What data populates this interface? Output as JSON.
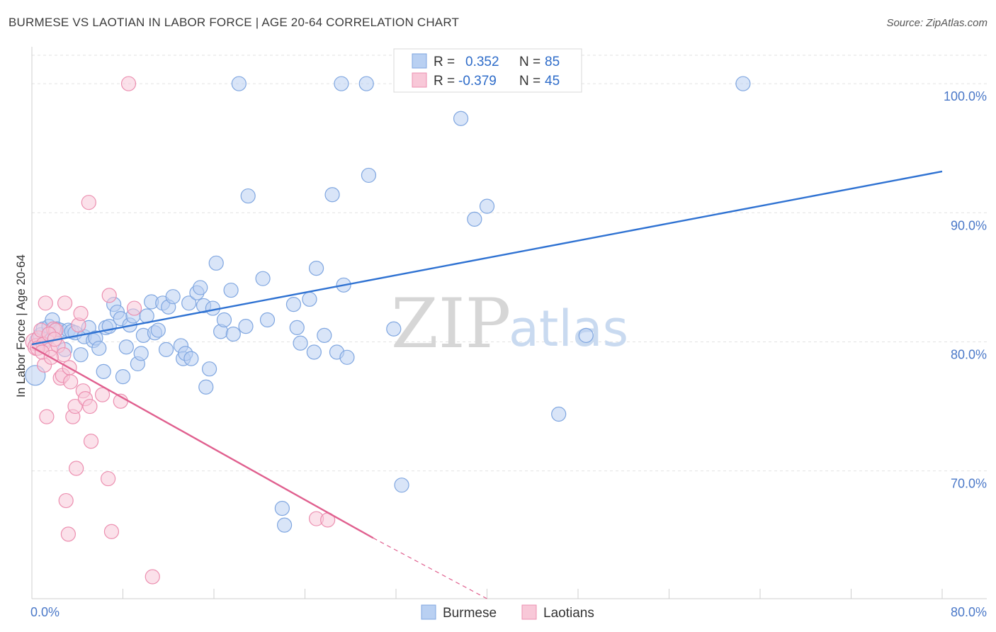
{
  "title": "BURMESE VS LAOTIAN IN LABOR FORCE | AGE 20-64 CORRELATION CHART",
  "source": "Source: ZipAtlas.com",
  "watermark": {
    "part1": "ZIP",
    "part2": "atlas"
  },
  "chart_data": {
    "type": "scatter",
    "xlabel": "",
    "ylabel": "In Labor Force | Age 20-64",
    "xlim": [
      0,
      80
    ],
    "ylim": [
      60.1,
      102.2
    ],
    "x_tick_labels": [
      "0.0%",
      "80.0%"
    ],
    "y_ticks": [
      70,
      80,
      90,
      100
    ],
    "y_tick_labels": [
      "70.0%",
      "80.0%",
      "90.0%",
      "100.0%"
    ],
    "grid": true,
    "stats": [
      {
        "r_label": "R =",
        "r_value": "0.352",
        "n_label": "N =",
        "n_value": "85"
      },
      {
        "r_label": "R =",
        "r_value": "-0.379",
        "n_label": "N =",
        "n_value": "45"
      }
    ],
    "series": [
      {
        "name": "Burmese",
        "color": "#7fa6e0",
        "fill": "#b9d0f2",
        "line_color": "#2f72d2",
        "trend": {
          "x0": 0.0,
          "y0": 79.8,
          "x1": 80.0,
          "y1": 93.2
        },
        "points": [
          [
            0.3,
            77.4,
            14
          ],
          [
            0.5,
            80.1,
            11
          ],
          [
            0.8,
            80.5,
            11
          ],
          [
            1.0,
            81.0,
            10
          ],
          [
            1.3,
            80.2,
            10
          ],
          [
            1.5,
            81.2,
            10
          ],
          [
            1.8,
            81.7,
            10
          ],
          [
            2.2,
            81.0,
            10
          ],
          [
            2.5,
            80.9,
            10
          ],
          [
            2.9,
            79.4,
            10
          ],
          [
            3.2,
            80.9,
            10
          ],
          [
            3.5,
            80.8,
            10
          ],
          [
            3.8,
            80.7,
            10
          ],
          [
            4.3,
            79.0,
            10
          ],
          [
            4.6,
            80.4,
            10
          ],
          [
            5.0,
            81.1,
            10
          ],
          [
            5.4,
            80.1,
            10
          ],
          [
            5.6,
            80.3,
            10
          ],
          [
            5.9,
            79.5,
            10
          ],
          [
            6.3,
            77.7,
            10
          ],
          [
            6.5,
            81.1,
            10
          ],
          [
            6.8,
            81.2,
            10
          ],
          [
            7.2,
            82.9,
            10
          ],
          [
            7.5,
            82.3,
            10
          ],
          [
            7.8,
            81.8,
            10
          ],
          [
            8.0,
            77.3,
            10
          ],
          [
            8.3,
            79.6,
            10
          ],
          [
            8.6,
            81.3,
            10
          ],
          [
            8.9,
            82.0,
            10
          ],
          [
            9.3,
            78.3,
            10
          ],
          [
            9.6,
            79.1,
            10
          ],
          [
            9.8,
            80.5,
            10
          ],
          [
            10.1,
            82.0,
            10
          ],
          [
            10.5,
            83.1,
            10
          ],
          [
            10.8,
            80.7,
            10
          ],
          [
            11.1,
            80.9,
            10
          ],
          [
            11.5,
            83.0,
            10
          ],
          [
            11.8,
            79.4,
            10
          ],
          [
            12.0,
            82.7,
            10
          ],
          [
            12.4,
            83.5,
            10
          ],
          [
            13.1,
            79.7,
            10
          ],
          [
            13.3,
            78.7,
            10
          ],
          [
            13.5,
            79.1,
            10
          ],
          [
            13.8,
            83.0,
            10
          ],
          [
            14.0,
            78.7,
            10
          ],
          [
            14.5,
            83.8,
            10
          ],
          [
            14.8,
            84.2,
            10
          ],
          [
            15.1,
            82.8,
            10
          ],
          [
            15.3,
            76.5,
            10
          ],
          [
            15.6,
            77.9,
            10
          ],
          [
            15.9,
            82.6,
            10
          ],
          [
            16.2,
            86.1,
            10
          ],
          [
            16.6,
            80.8,
            10
          ],
          [
            16.9,
            81.7,
            10
          ],
          [
            17.5,
            84.0,
            10
          ],
          [
            17.7,
            80.6,
            10
          ],
          [
            18.2,
            100.0,
            10
          ],
          [
            18.8,
            81.2,
            10
          ],
          [
            19.0,
            91.3,
            10
          ],
          [
            20.3,
            84.9,
            10
          ],
          [
            20.7,
            81.7,
            10
          ],
          [
            22.0,
            67.1,
            10
          ],
          [
            22.2,
            65.8,
            10
          ],
          [
            23.0,
            82.9,
            10
          ],
          [
            23.3,
            81.1,
            10
          ],
          [
            23.6,
            79.9,
            10
          ],
          [
            24.4,
            83.3,
            10
          ],
          [
            24.8,
            79.2,
            10
          ],
          [
            25.0,
            85.7,
            10
          ],
          [
            25.7,
            80.5,
            10
          ],
          [
            26.4,
            91.4,
            10
          ],
          [
            26.8,
            79.2,
            10
          ],
          [
            27.2,
            100.0,
            10
          ],
          [
            27.4,
            84.4,
            10
          ],
          [
            27.7,
            78.8,
            10
          ],
          [
            29.4,
            100.0,
            10
          ],
          [
            29.6,
            92.9,
            10
          ],
          [
            31.8,
            81.0,
            10
          ],
          [
            32.5,
            68.9,
            10
          ],
          [
            37.7,
            97.3,
            10
          ],
          [
            38.9,
            89.5,
            10
          ],
          [
            40.0,
            90.5,
            10
          ],
          [
            46.3,
            74.4,
            10
          ],
          [
            48.7,
            80.5,
            10
          ],
          [
            62.5,
            100.0,
            10
          ]
        ]
      },
      {
        "name": "Laotians",
        "color": "#ec8fb0",
        "fill": "#f8c8d8",
        "line_color": "#e0608f",
        "trend": {
          "x0": 0.0,
          "y0": 79.6,
          "x1": 30.0,
          "y1": 64.8
        },
        "trend_dash": {
          "x0": 30.0,
          "y0": 64.8,
          "x1": 40.0,
          "y1": 60.1
        },
        "points": [
          [
            0.2,
            80.0,
            12
          ],
          [
            0.4,
            79.6,
            12
          ],
          [
            0.6,
            80.3,
            10
          ],
          [
            0.8,
            80.9,
            10
          ],
          [
            1.0,
            79.8,
            10
          ],
          [
            1.1,
            78.2,
            10
          ],
          [
            1.2,
            83.0,
            10
          ],
          [
            1.3,
            74.2,
            10
          ],
          [
            1.6,
            79.4,
            10
          ],
          [
            1.9,
            81.0,
            10
          ],
          [
            2.1,
            80.9,
            10
          ],
          [
            2.3,
            79.7,
            10
          ],
          [
            2.5,
            77.2,
            10
          ],
          [
            2.7,
            77.4,
            10
          ],
          [
            2.8,
            79.0,
            10
          ],
          [
            2.9,
            83.0,
            10
          ],
          [
            3.0,
            67.7,
            10
          ],
          [
            3.2,
            65.1,
            10
          ],
          [
            3.3,
            78.0,
            10
          ],
          [
            3.4,
            76.9,
            10
          ],
          [
            3.6,
            74.2,
            10
          ],
          [
            3.8,
            75.0,
            10
          ],
          [
            3.9,
            70.2,
            10
          ],
          [
            4.1,
            81.3,
            10
          ],
          [
            4.3,
            82.2,
            10
          ],
          [
            4.5,
            76.2,
            10
          ],
          [
            4.7,
            75.6,
            10
          ],
          [
            5.0,
            90.8,
            10
          ],
          [
            5.1,
            75.0,
            10
          ],
          [
            5.2,
            72.3,
            10
          ],
          [
            6.2,
            75.9,
            10
          ],
          [
            6.7,
            69.4,
            10
          ],
          [
            6.8,
            83.6,
            10
          ],
          [
            7.0,
            65.3,
            10
          ],
          [
            7.8,
            75.4,
            10
          ],
          [
            8.5,
            100.0,
            10
          ],
          [
            9.0,
            82.6,
            10
          ],
          [
            10.6,
            61.8,
            10
          ],
          [
            25.0,
            66.3,
            10
          ],
          [
            26.0,
            66.2,
            10
          ],
          [
            0.5,
            79.5,
            10
          ],
          [
            1.5,
            80.6,
            10
          ],
          [
            2.0,
            80.2,
            10
          ],
          [
            0.9,
            79.2,
            10
          ],
          [
            1.7,
            78.8,
            10
          ]
        ]
      }
    ]
  }
}
